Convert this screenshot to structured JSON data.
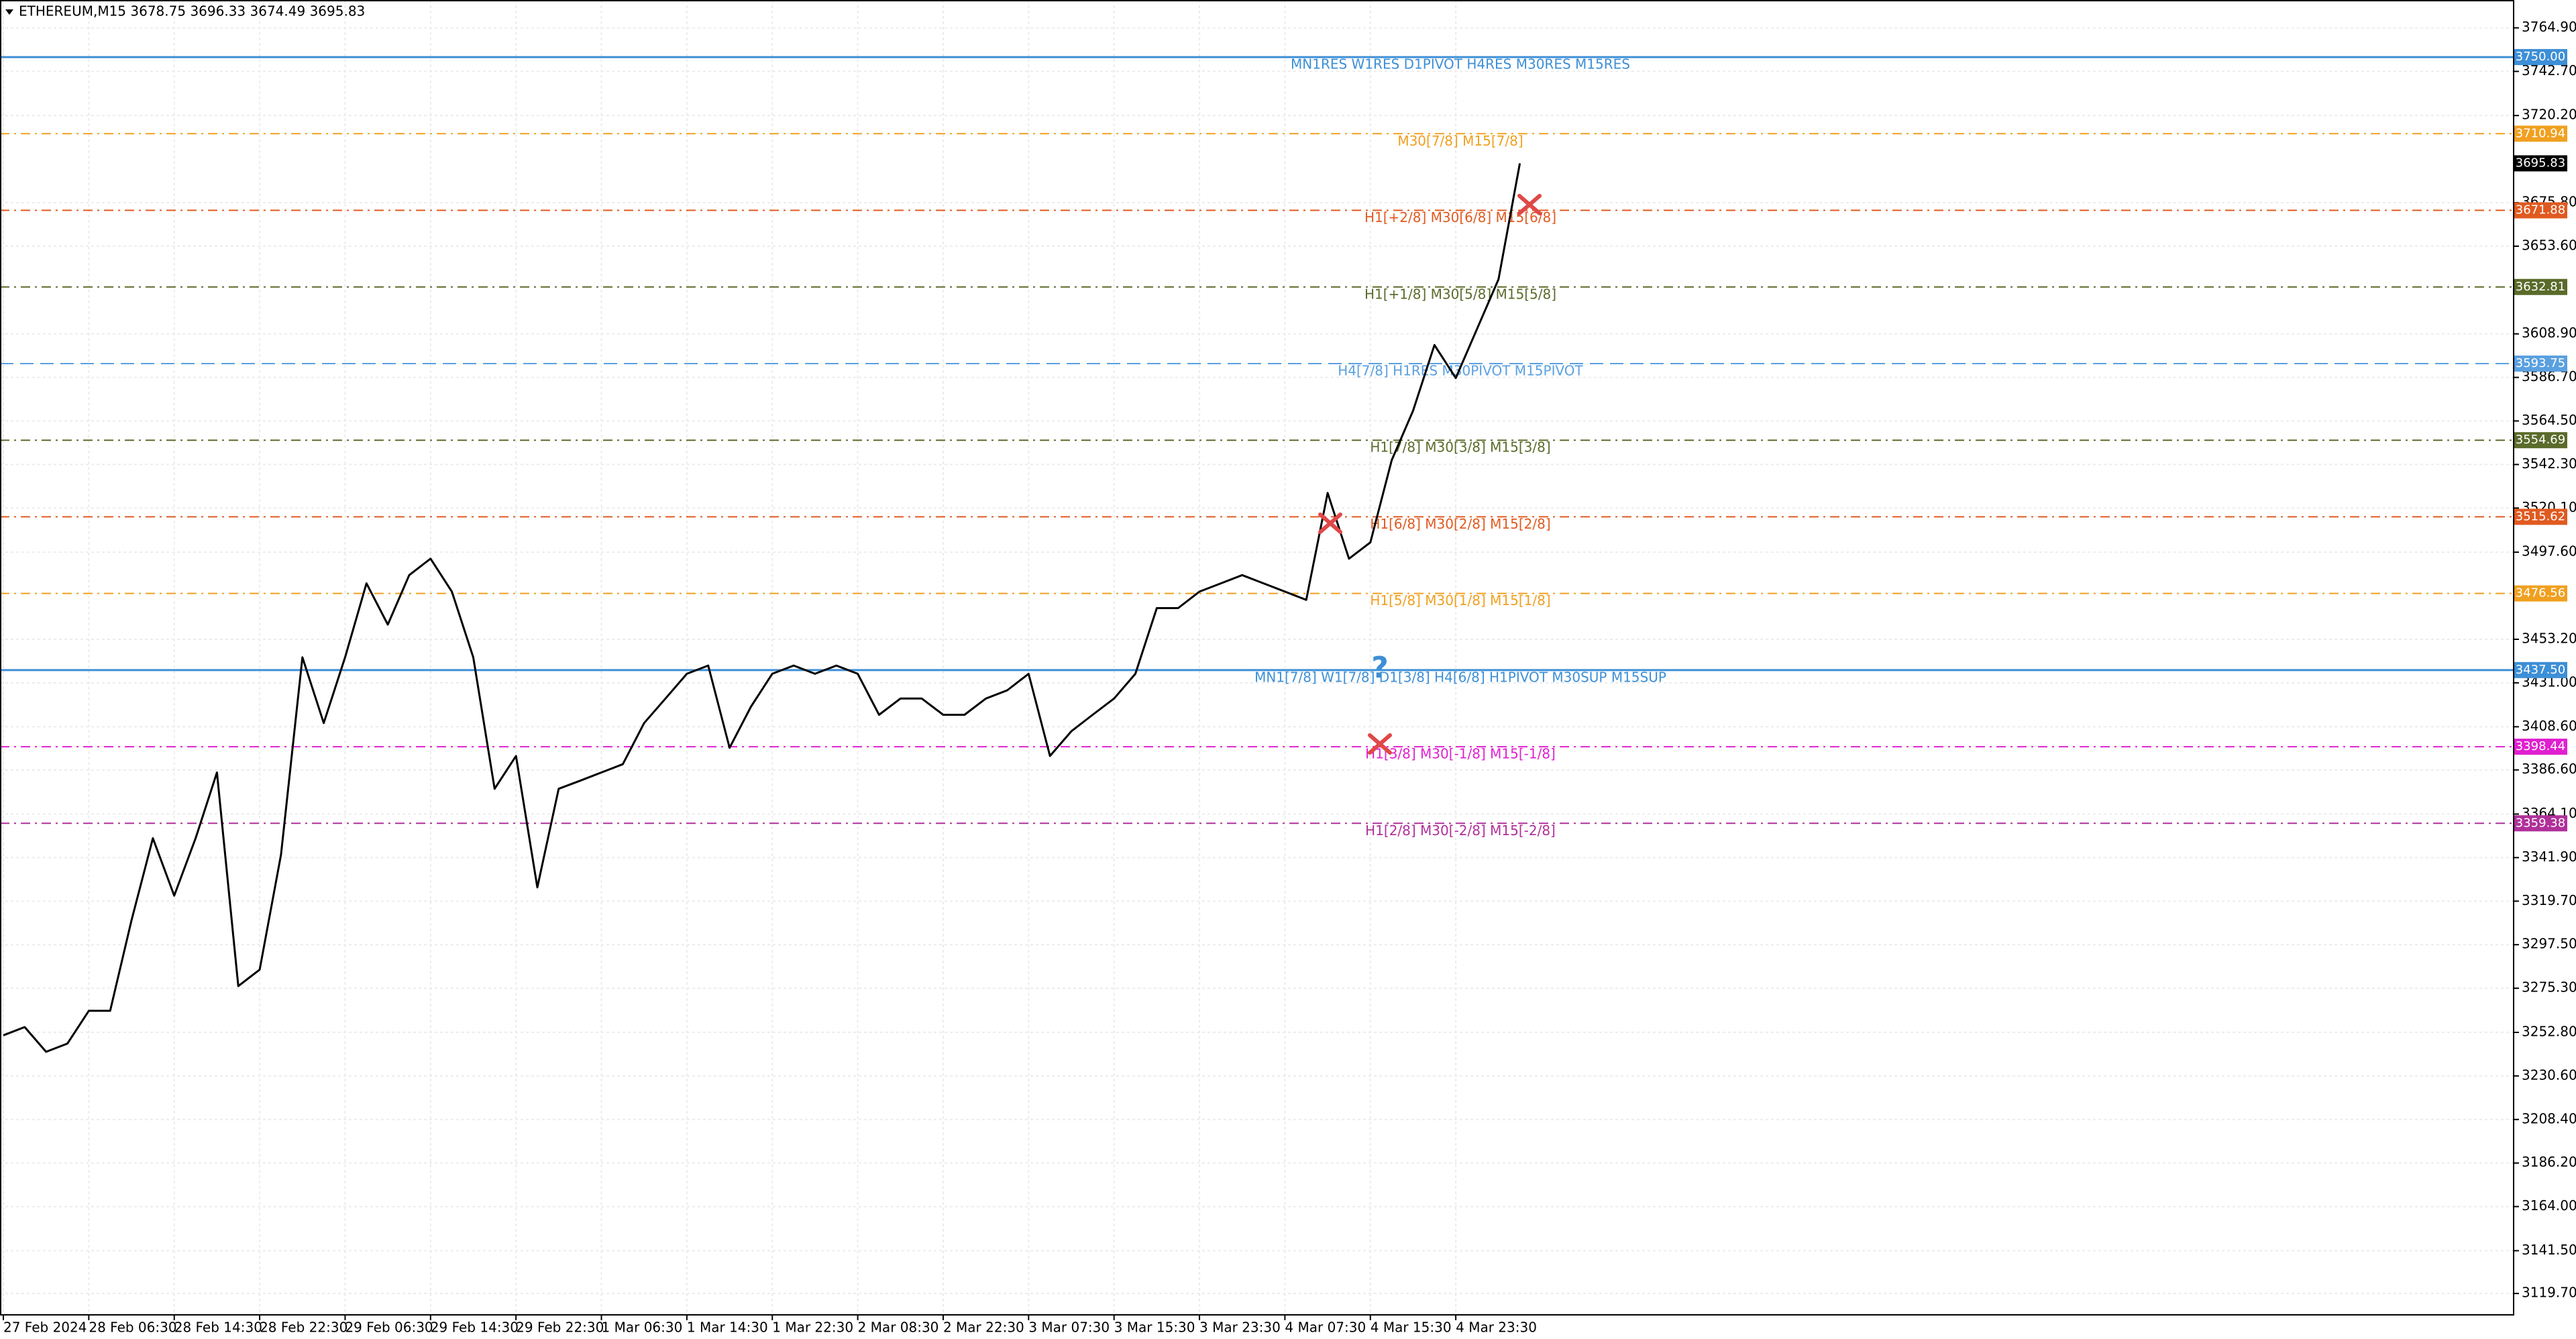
{
  "chart_data": {
    "type": "line",
    "title": "ETHEREUM,M15  3678.75 3696.33 3674.49 3695.83",
    "color": "#000000",
    "grid": true,
    "categories": [
      "27 Feb 2024",
      null,
      null,
      null,
      "28 Feb 06:30",
      null,
      null,
      null,
      "28 Feb 14:30",
      null,
      null,
      null,
      "28 Feb 22:30",
      null,
      null,
      null,
      "29 Feb 06:30",
      null,
      null,
      null,
      "29 Feb 14:30",
      null,
      null,
      null,
      "29 Feb 22:30",
      null,
      null,
      null,
      "1 Mar 06:30",
      null,
      null,
      null,
      "1 Mar 14:30",
      null,
      null,
      null,
      "1 Mar 22:30",
      null,
      null,
      null,
      "2 Mar 08:30",
      null,
      null,
      null,
      "2 Mar 22:30",
      null,
      null,
      null,
      "3 Mar 07:30",
      null,
      null,
      null,
      "3 Mar 15:30",
      null,
      null,
      null,
      "3 Mar 23:30",
      null,
      null,
      null,
      "4 Mar 07:30",
      null,
      null,
      null,
      "4 Mar 15:30",
      null,
      null,
      null,
      "4 Mar 23:30",
      null,
      null,
      null
    ],
    "values": [
      3251.3,
      3255.5,
      3242.9,
      3247.1,
      3263.8,
      3263.8,
      3309.9,
      3351.8,
      3322.5,
      3351.8,
      3385.3,
      3276.4,
      3284.8,
      3343.4,
      3444.0,
      3410.5,
      3444.0,
      3481.7,
      3460.7,
      3485.9,
      3494.3,
      3477.5,
      3444.0,
      3377.0,
      3393.7,
      3326.7,
      3377.0,
      3381.1,
      3385.3,
      3389.5,
      3410.5,
      3423.0,
      3435.6,
      3439.8,
      3397.9,
      3418.8,
      3435.6,
      3439.8,
      3435.6,
      3439.8,
      3435.6,
      3414.7,
      3423.0,
      3423.0,
      3414.7,
      3414.7,
      3423.0,
      3427.2,
      3435.6,
      3393.7,
      3406.3,
      3414.7,
      3423.0,
      3435.6,
      3469.1,
      3469.1,
      3477.5,
      3481.7,
      3485.9,
      3481.7,
      3477.5,
      3473.3,
      3527.8,
      3494.3,
      3502.6,
      3544.5,
      3569.7,
      3603.2,
      3586.4,
      3611.6,
      3636.7,
      3695.83
    ],
    "ylim": [
      3108.8,
      3779.1
    ],
    "yticks": [
      {
        "value": 3764.9,
        "label": "3764.90"
      },
      {
        "value": 3742.7,
        "label": "3742.70"
      },
      {
        "value": 3720.2,
        "label": "3720.20"
      },
      {
        "value": 3675.8,
        "label": "3675.80"
      },
      {
        "value": 3653.6,
        "label": "3653.60"
      },
      {
        "value": 3608.9,
        "label": "3608.90"
      },
      {
        "value": 3586.7,
        "label": "3586.70"
      },
      {
        "value": 3564.5,
        "label": "3564.50"
      },
      {
        "value": 3542.3,
        "label": "3542.30"
      },
      {
        "value": 3520.1,
        "label": "3520.10"
      },
      {
        "value": 3497.6,
        "label": "3497.60"
      },
      {
        "value": 3453.2,
        "label": "3453.20"
      },
      {
        "value": 3431.0,
        "label": "3431.00"
      },
      {
        "value": 3408.6,
        "label": "3408.60"
      },
      {
        "value": 3386.6,
        "label": "3386.60"
      },
      {
        "value": 3364.1,
        "label": "3364.10"
      },
      {
        "value": 3341.9,
        "label": "3341.90"
      },
      {
        "value": 3319.7,
        "label": "3319.70"
      },
      {
        "value": 3297.5,
        "label": "3297.50"
      },
      {
        "value": 3275.3,
        "label": "3275.30"
      },
      {
        "value": 3252.8,
        "label": "3252.80"
      },
      {
        "value": 3230.6,
        "label": "3230.60"
      },
      {
        "value": 3208.4,
        "label": "3208.40"
      },
      {
        "value": 3186.2,
        "label": "3186.20"
      },
      {
        "value": 3164.0,
        "label": "3164.00"
      },
      {
        "value": 3141.5,
        "label": "3141.50"
      },
      {
        "value": 3119.7,
        "label": "3119.70"
      }
    ],
    "levels": [
      {
        "label": "MN1RES W1RES D1PIVOT H4RES M30RES M15RES",
        "value": 3750,
        "value_label": "3750.00",
        "color": "#3d8fd6",
        "style": "solid"
      },
      {
        "label": "M30[7/8] M15[7/8]",
        "value": 3710.94,
        "color": "#f0a020",
        "style": "dashdot"
      },
      {
        "label": "H1[+2/8] M30[6/8] M15[6/8]",
        "value": 3671.88,
        "color": "#e05a20",
        "style": "dashdot"
      },
      {
        "label": "H1[+1/8] M30[5/8] M15[5/8]",
        "value": 3632.81,
        "color": "#5a6b2a",
        "style": "dashdot"
      },
      {
        "label": "H4[7/8] H1RES M30PIVOT M15PIVOT",
        "value": 3593.75,
        "color": "#5aa0e0",
        "style": "dashed"
      },
      {
        "label": "H1[7/8] M30[3/8] M15[3/8]",
        "value": 3554.69,
        "color": "#5a6b2a",
        "style": "dashdot"
      },
      {
        "label": "H1[6/8] M30[2/8] M15[2/8]",
        "value": 3515.62,
        "color": "#e05a20",
        "style": "dashdot"
      },
      {
        "label": "H1[5/8] M30[1/8] M15[1/8]",
        "value": 3476.56,
        "color": "#f0a020",
        "style": "dashdot"
      },
      {
        "label": "MN1[7/8] W1[7/8] D1[3/8] H4[6/8] H1PIVOT M30SUP M15SUP",
        "value": 3437.5,
        "value_label": "3437.50",
        "color": "#3d8fd6",
        "style": "solid"
      },
      {
        "label": "H1[3/8] M30[-1/8] M15[-1/8]",
        "value": 3398.44,
        "color": "#e020d0",
        "style": "dashdot"
      },
      {
        "label": "H1[2/8] M30[-2/8] M15[-2/8]",
        "value": 3359.38,
        "color": "#b0309a",
        "style": "dashdot"
      }
    ],
    "last_price": 3695.83
  }
}
